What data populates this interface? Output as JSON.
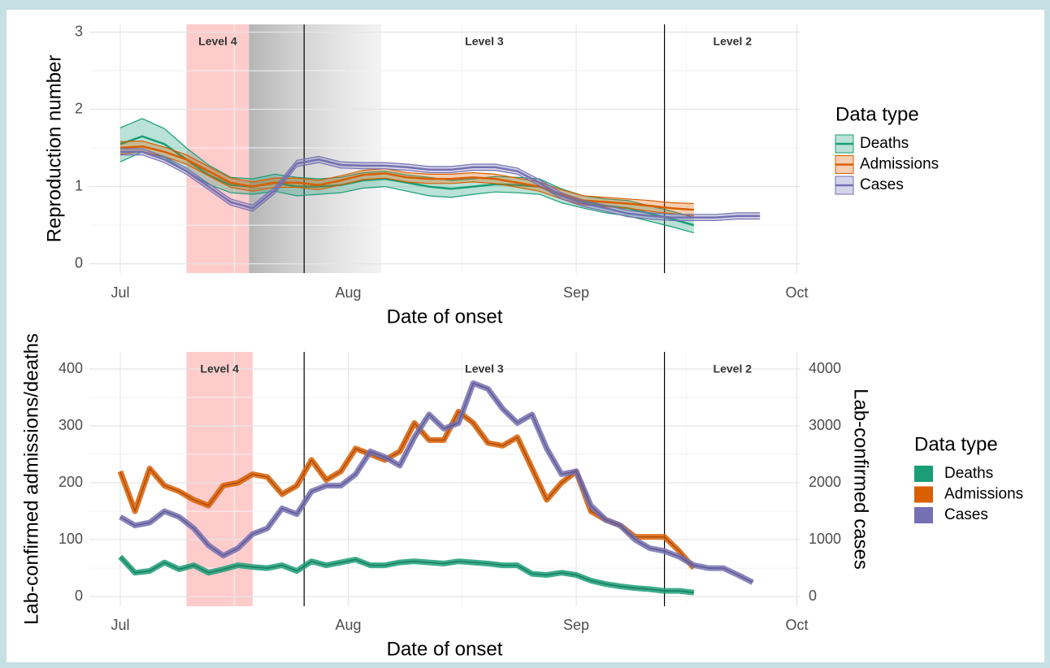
{
  "chart_data": [
    {
      "type": "line",
      "ylabel": "Reproduction number",
      "xlabel": "Date of onset",
      "xlim": [
        -4.2,
        92.5
      ],
      "ylim": [
        -0.12,
        3.1
      ],
      "xticks": [
        {
          "value": 0,
          "label": "Jul"
        },
        {
          "value": 31,
          "label": "Aug"
        },
        {
          "value": 62,
          "label": "Sep"
        },
        {
          "value": 92,
          "label": "Oct"
        }
      ],
      "yticks": [
        0,
        1,
        2,
        3
      ],
      "grid": true,
      "shade": [
        9,
        17.5
      ],
      "transition": [
        17.5,
        35.5
      ],
      "levels": [
        {
          "label": "Level 4"
        },
        {
          "label": "Level 3",
          "start": 25
        },
        {
          "label": "Level 2",
          "start": 74
        }
      ],
      "legend_title": "Data type",
      "series": [
        {
          "name": "Deaths",
          "color": "#1b9e77",
          "x": [
            0,
            3,
            6,
            9,
            12,
            15,
            18,
            21,
            24,
            27,
            30,
            33,
            36,
            39,
            42,
            45,
            48,
            51,
            54,
            57,
            60,
            63,
            66,
            69,
            72,
            75,
            78
          ],
          "values": [
            1.55,
            1.65,
            1.55,
            1.35,
            1.15,
            1.02,
            1.0,
            1.05,
            1.0,
            1.0,
            1.02,
            1.08,
            1.1,
            1.05,
            1.0,
            0.97,
            1.0,
            1.03,
            1.02,
            1.0,
            0.88,
            0.8,
            0.75,
            0.72,
            0.65,
            0.58,
            0.5
          ],
          "lower": [
            1.32,
            1.45,
            1.38,
            1.2,
            1.03,
            0.92,
            0.9,
            0.94,
            0.88,
            0.9,
            0.92,
            0.98,
            1.0,
            0.94,
            0.88,
            0.86,
            0.9,
            0.93,
            0.92,
            0.9,
            0.79,
            0.72,
            0.66,
            0.62,
            0.55,
            0.48,
            0.4
          ],
          "upper": [
            1.76,
            1.88,
            1.75,
            1.5,
            1.28,
            1.12,
            1.1,
            1.16,
            1.12,
            1.1,
            1.12,
            1.18,
            1.2,
            1.15,
            1.12,
            1.08,
            1.1,
            1.13,
            1.12,
            1.1,
            0.97,
            0.88,
            0.84,
            0.82,
            0.75,
            0.68,
            0.6
          ]
        },
        {
          "name": "Admissions",
          "color": "#d95f02",
          "x": [
            0,
            3,
            6,
            9,
            12,
            15,
            18,
            21,
            24,
            27,
            30,
            33,
            36,
            39,
            42,
            45,
            48,
            51,
            54,
            57,
            60,
            63,
            66,
            69,
            72,
            75,
            78
          ],
          "values": [
            1.5,
            1.52,
            1.45,
            1.35,
            1.2,
            1.05,
            1.0,
            1.05,
            1.05,
            1.02,
            1.08,
            1.15,
            1.17,
            1.12,
            1.1,
            1.1,
            1.12,
            1.1,
            1.05,
            1.0,
            0.9,
            0.82,
            0.8,
            0.78,
            0.75,
            0.72,
            0.7
          ],
          "lower": [
            1.42,
            1.45,
            1.39,
            1.29,
            1.14,
            0.99,
            0.94,
            0.99,
            0.99,
            0.96,
            1.02,
            1.09,
            1.11,
            1.06,
            1.04,
            1.04,
            1.06,
            1.04,
            0.99,
            0.94,
            0.84,
            0.76,
            0.74,
            0.72,
            0.68,
            0.65,
            0.62
          ],
          "upper": [
            1.58,
            1.59,
            1.51,
            1.41,
            1.26,
            1.11,
            1.06,
            1.11,
            1.11,
            1.08,
            1.14,
            1.21,
            1.23,
            1.18,
            1.16,
            1.16,
            1.18,
            1.16,
            1.11,
            1.06,
            0.96,
            0.88,
            0.86,
            0.84,
            0.82,
            0.79,
            0.78
          ]
        },
        {
          "name": "Cases",
          "color": "#7570b3",
          "x": [
            0,
            3,
            6,
            9,
            12,
            15,
            18,
            21,
            24,
            27,
            30,
            33,
            36,
            39,
            42,
            45,
            48,
            51,
            54,
            57,
            60,
            63,
            66,
            69,
            72,
            75,
            78,
            81,
            84,
            87
          ],
          "values": [
            1.45,
            1.45,
            1.35,
            1.2,
            1.0,
            0.8,
            0.72,
            0.95,
            1.3,
            1.35,
            1.28,
            1.27,
            1.27,
            1.25,
            1.22,
            1.22,
            1.25,
            1.25,
            1.2,
            1.05,
            0.88,
            0.78,
            0.72,
            0.65,
            0.62,
            0.6,
            0.6,
            0.6,
            0.62,
            0.62
          ],
          "lower": [
            1.41,
            1.41,
            1.31,
            1.16,
            0.96,
            0.76,
            0.68,
            0.91,
            1.26,
            1.31,
            1.24,
            1.23,
            1.23,
            1.21,
            1.18,
            1.18,
            1.21,
            1.21,
            1.16,
            1.01,
            0.84,
            0.74,
            0.68,
            0.61,
            0.58,
            0.56,
            0.56,
            0.56,
            0.58,
            0.58
          ],
          "upper": [
            1.49,
            1.49,
            1.39,
            1.24,
            1.04,
            0.84,
            0.76,
            0.99,
            1.34,
            1.39,
            1.32,
            1.31,
            1.31,
            1.29,
            1.26,
            1.26,
            1.29,
            1.29,
            1.24,
            1.09,
            0.92,
            0.82,
            0.76,
            0.69,
            0.66,
            0.64,
            0.64,
            0.64,
            0.66,
            0.66
          ]
        }
      ]
    },
    {
      "type": "line",
      "ylabel": "Lab-confirmed admissions/deaths",
      "y2label": "Lab-confirmed cases",
      "xlabel": "Date of onset",
      "xlim": [
        -4.2,
        92.5
      ],
      "ylim": [
        -17,
        430
      ],
      "y2lim": [
        -170,
        4300
      ],
      "xticks": [
        {
          "value": 0,
          "label": "Jul"
        },
        {
          "value": 31,
          "label": "Aug"
        },
        {
          "value": 62,
          "label": "Sep"
        },
        {
          "value": 92,
          "label": "Oct"
        }
      ],
      "yticks": [
        0,
        100,
        200,
        300,
        400
      ],
      "y2ticks": [
        0,
        1000,
        2000,
        3000,
        4000
      ],
      "grid": true,
      "shade": [
        9,
        18
      ],
      "levels": [
        {
          "label": "Level 4"
        },
        {
          "label": "Level 3",
          "start": 25
        },
        {
          "label": "Level 2",
          "start": 74
        }
      ],
      "legend_title": "Data type",
      "series": [
        {
          "name": "Deaths",
          "color": "#1b9e77",
          "x": [
            0,
            2,
            4,
            6,
            8,
            10,
            12,
            14,
            16,
            18,
            20,
            22,
            24,
            26,
            28,
            30,
            32,
            34,
            36,
            38,
            40,
            42,
            44,
            46,
            48,
            50,
            52,
            54,
            56,
            58,
            60,
            62,
            64,
            66,
            68,
            70,
            72,
            74,
            76,
            78
          ],
          "values": [
            70,
            42,
            45,
            60,
            48,
            55,
            42,
            48,
            55,
            52,
            50,
            55,
            45,
            62,
            55,
            60,
            65,
            55,
            55,
            60,
            62,
            60,
            58,
            62,
            60,
            58,
            55,
            55,
            40,
            38,
            42,
            38,
            28,
            22,
            18,
            15,
            13,
            10,
            10,
            7
          ]
        },
        {
          "name": "Admissions",
          "color": "#d95f02",
          "x": [
            0,
            2,
            4,
            6,
            8,
            10,
            12,
            14,
            16,
            18,
            20,
            22,
            24,
            26,
            28,
            30,
            32,
            34,
            36,
            38,
            40,
            42,
            44,
            46,
            48,
            50,
            52,
            54,
            56,
            58,
            60,
            62,
            64,
            66,
            68,
            70,
            72,
            74,
            76,
            78
          ],
          "values": [
            220,
            150,
            225,
            195,
            185,
            170,
            160,
            195,
            200,
            215,
            210,
            180,
            195,
            240,
            205,
            220,
            260,
            250,
            240,
            255,
            305,
            275,
            275,
            325,
            305,
            270,
            265,
            280,
            225,
            170,
            200,
            220,
            150,
            135,
            125,
            105,
            105,
            105,
            80,
            50
          ]
        },
        {
          "name": "Cases",
          "color": "#7570b3",
          "axis": "y2",
          "x": [
            0,
            2,
            4,
            6,
            8,
            10,
            12,
            14,
            16,
            18,
            20,
            22,
            24,
            26,
            28,
            30,
            32,
            34,
            36,
            38,
            40,
            42,
            44,
            46,
            48,
            50,
            52,
            54,
            56,
            58,
            60,
            62,
            64,
            66,
            68,
            70,
            72,
            74,
            76,
            78,
            80,
            82,
            84,
            86
          ],
          "values": [
            1400,
            1250,
            1300,
            1500,
            1400,
            1200,
            900,
            720,
            850,
            1100,
            1200,
            1550,
            1450,
            1850,
            1950,
            1950,
            2150,
            2550,
            2450,
            2300,
            2800,
            3200,
            2950,
            3050,
            3750,
            3650,
            3300,
            3050,
            3200,
            2600,
            2150,
            2200,
            1600,
            1350,
            1250,
            1000,
            850,
            800,
            700,
            550,
            500,
            500,
            380,
            250
          ]
        }
      ]
    }
  ]
}
